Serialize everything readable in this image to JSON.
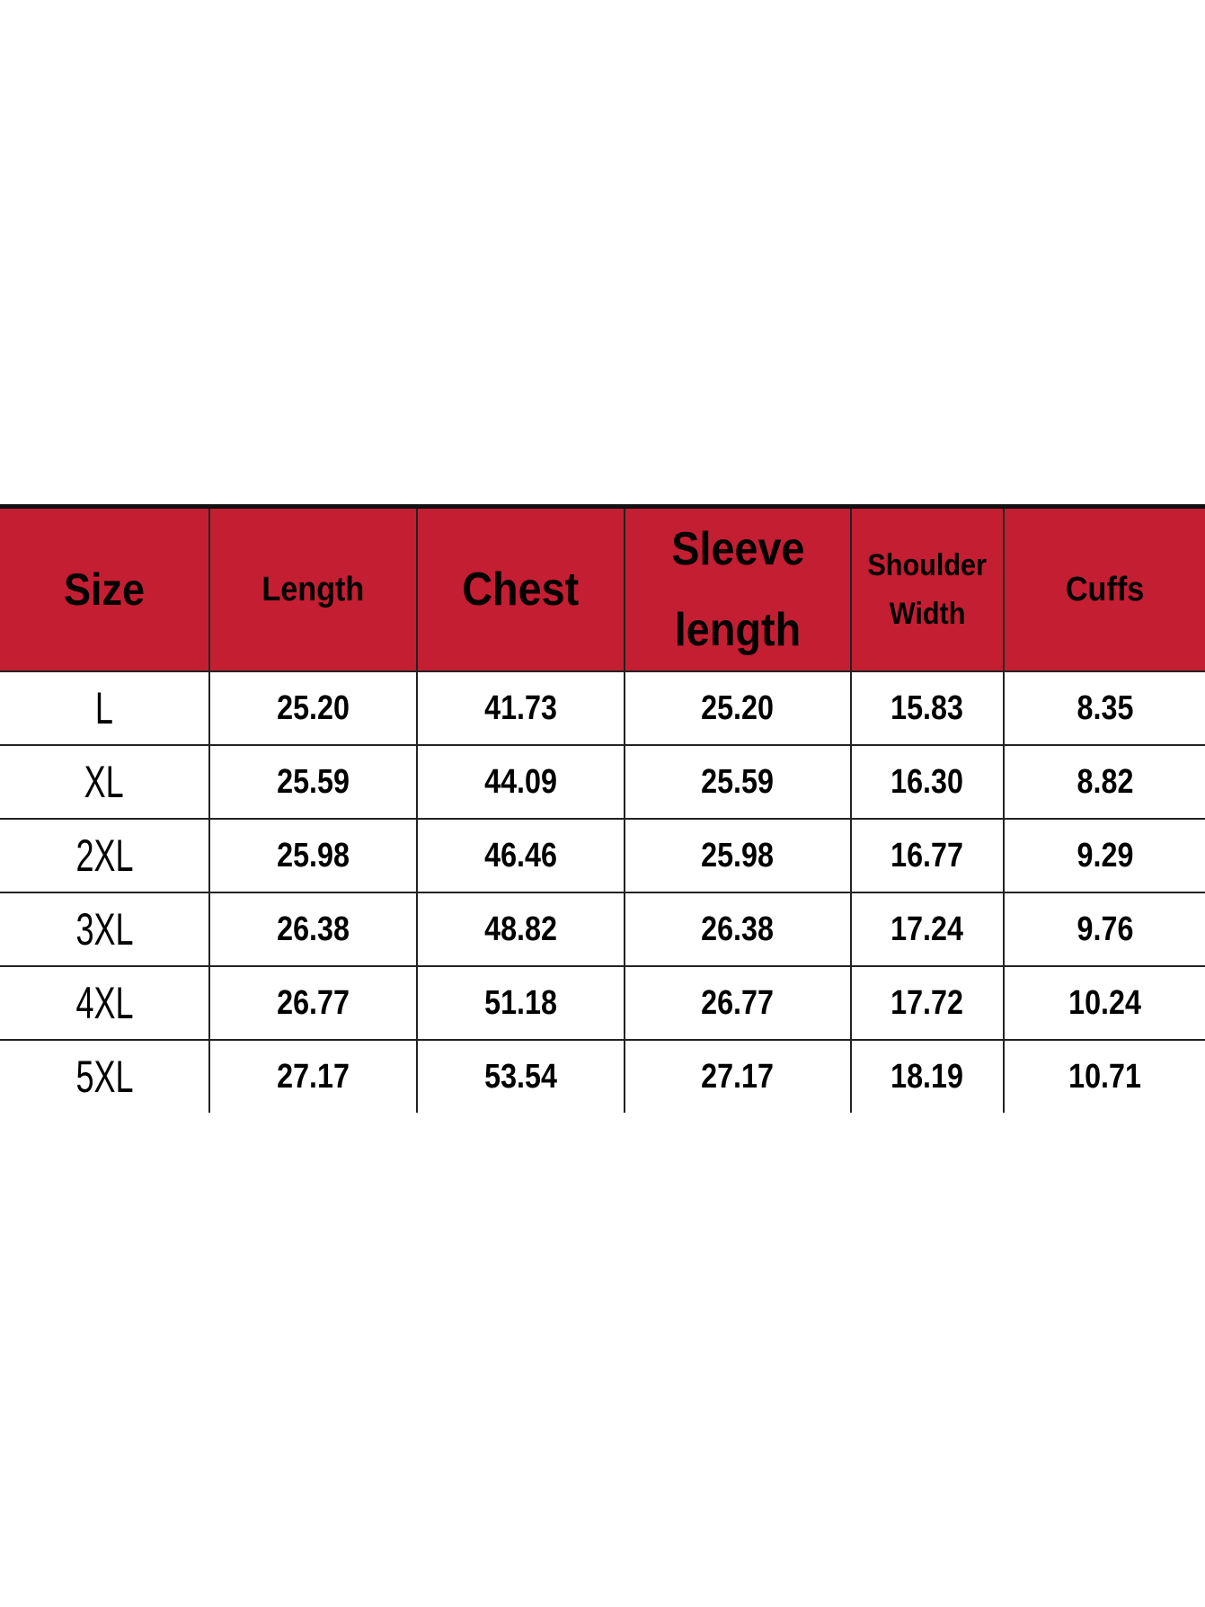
{
  "table": {
    "headers": [
      {
        "lines": [
          "Size"
        ]
      },
      {
        "lines": [
          "Length"
        ]
      },
      {
        "lines": [
          "Chest"
        ]
      },
      {
        "lines": [
          "Sleeve",
          "length"
        ]
      },
      {
        "lines": [
          "Shoulder",
          "Width"
        ]
      },
      {
        "lines": [
          "Cuffs"
        ]
      }
    ],
    "header_color": "#c41e33",
    "rows": [
      [
        "L",
        "25.20",
        "41.73",
        "25.20",
        "15.83",
        "8.35"
      ],
      [
        "XL",
        "25.59",
        "44.09",
        "25.59",
        "16.30",
        "8.82"
      ],
      [
        "2XL",
        "25.98",
        "46.46",
        "25.98",
        "16.77",
        "9.29"
      ],
      [
        "3XL",
        "26.38",
        "48.82",
        "26.38",
        "17.24",
        "9.76"
      ],
      [
        "4XL",
        "26.77",
        "51.18",
        "26.77",
        "17.72",
        "10.24"
      ],
      [
        "5XL",
        "27.17",
        "53.54",
        "27.17",
        "18.19",
        "10.71"
      ]
    ]
  }
}
